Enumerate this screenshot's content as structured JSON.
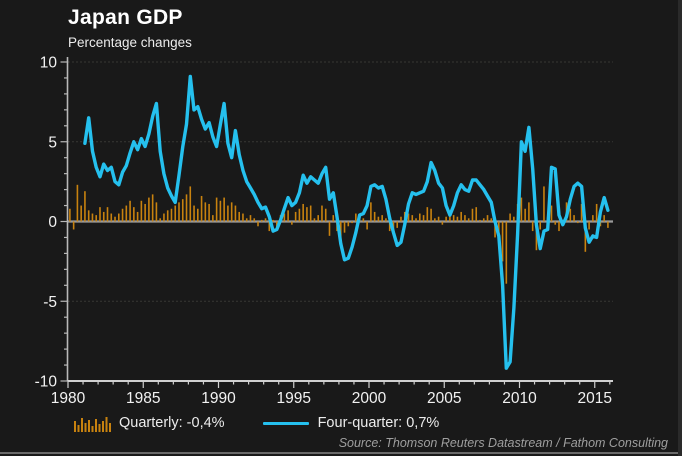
{
  "header": {
    "title": "Japan GDP",
    "subtitle": "Percentage changes"
  },
  "legend": {
    "quarterly_label": "Quarterly: -0,4%",
    "four_quarter_label": "Four-quarter: 0,7%",
    "quarterly_color": "#c8820f",
    "four_quarter_color": "#25c0ee"
  },
  "footer": {
    "source": "Source: Thomson Reuters Datastream / Fathom Consulting"
  },
  "chart_data": {
    "type": "bar",
    "subtype": "bar+line combo, quarterly time series",
    "title": "Japan GDP",
    "subtitle": "Percentage changes",
    "xlabel": "",
    "ylabel": "Percentage changes",
    "ylim": [
      -10,
      10
    ],
    "xlim": [
      1980,
      2016.2
    ],
    "yticks": [
      10,
      5,
      0,
      -5,
      -10
    ],
    "xticks": [
      1980,
      1985,
      1990,
      1995,
      2000,
      2005,
      2010,
      2015
    ],
    "grid": {
      "dotted_at": [
        10,
        5,
        -5
      ],
      "zero_line": true
    },
    "legend_position": "bottom-left",
    "source": "Source: Thomson Reuters Datastream / Fathom Consulting",
    "series": [
      {
        "name": "Quarterly",
        "render": "bar",
        "color": "#c8820f",
        "start_year": 1980,
        "frequency": "quarterly",
        "latest_value_label": "-0,4%",
        "values": [
          0.8,
          -0.5,
          2.3,
          1.0,
          1.9,
          0.7,
          0.5,
          0.4,
          0.9,
          0.6,
          0.9,
          0.5,
          0.3,
          0.5,
          0.8,
          1.0,
          1.3,
          0.9,
          0.6,
          1.3,
          1.1,
          1.5,
          1.7,
          1.2,
          0.2,
          0.5,
          0.7,
          0.8,
          1.0,
          1.2,
          1.4,
          1.7,
          2.2,
          1.0,
          0.8,
          1.6,
          1.2,
          1.1,
          0.4,
          1.5,
          1.3,
          1.5,
          1.0,
          1.2,
          1.0,
          0.6,
          0.5,
          0.2,
          0.4,
          0.2,
          -0.3,
          0.1,
          0.2,
          -0.6,
          0.1,
          -0.4,
          0.4,
          0.5,
          0.7,
          -0.2,
          0.6,
          0.8,
          1.1,
          0.9,
          1.0,
          0.2,
          0.4,
          1.0,
          0.8,
          -0.9,
          0.4,
          -0.6,
          -1.0,
          -0.7,
          -0.3,
          -0.1,
          0.5,
          0.4,
          0.2,
          -0.5,
          1.2,
          0.6,
          0.3,
          0.4,
          0.2,
          -0.6,
          -0.8,
          -0.4,
          0.3,
          0.6,
          0.5,
          0.4,
          0.2,
          0.5,
          0.4,
          0.9,
          0.8,
          0.2,
          0.3,
          -0.2,
          0.3,
          0.6,
          0.4,
          0.3,
          0.6,
          0.4,
          0.2,
          0.8,
          0.9,
          0.1,
          0.2,
          0.4,
          0.2,
          -1.0,
          -1.2,
          -2.5,
          -3.9,
          0.5,
          0.3,
          1.1,
          1.5,
          0.8,
          1.2,
          -0.6,
          -1.8,
          -0.5,
          2.2,
          0.3,
          1.0,
          -0.2,
          -0.6,
          0.1,
          1.2,
          0.8,
          0.4,
          -0.1,
          1.1,
          -1.9,
          -0.5,
          0.4,
          1.1,
          -0.3,
          0.4,
          -0.4
        ]
      },
      {
        "name": "Four-quarter",
        "render": "line",
        "color": "#25c0ee",
        "start_year": 1981,
        "frequency": "quarterly",
        "latest_value_label": "0,7%",
        "values": [
          4.9,
          6.5,
          4.4,
          3.4,
          2.8,
          3.6,
          3.2,
          3.4,
          2.5,
          2.3,
          3.1,
          3.5,
          4.3,
          5.0,
          4.5,
          5.2,
          4.7,
          5.5,
          6.6,
          7.4,
          4.4,
          3.0,
          2.1,
          1.6,
          1.2,
          2.9,
          4.7,
          6.1,
          9.1,
          7.0,
          7.2,
          6.4,
          5.8,
          6.2,
          5.3,
          4.7,
          6.1,
          7.4,
          4.9,
          4.0,
          5.7,
          4.2,
          3.2,
          2.5,
          2.1,
          1.7,
          1.2,
          0.8,
          0.9,
          0.3,
          -0.6,
          -0.5,
          0.1,
          0.8,
          1.5,
          1.0,
          1.2,
          1.8,
          2.9,
          2.4,
          2.8,
          2.6,
          2.4,
          3.0,
          3.4,
          1.4,
          1.8,
          0.3,
          -1.4,
          -2.4,
          -2.3,
          -1.6,
          -0.7,
          0.4,
          0.5,
          1.0,
          2.2,
          2.3,
          2.1,
          2.2,
          1.4,
          0.2,
          -0.7,
          -1.5,
          -1.3,
          -0.2,
          1.1,
          1.8,
          1.7,
          1.8,
          1.9,
          2.5,
          3.7,
          3.2,
          2.4,
          2.1,
          1.0,
          0.4,
          1.0,
          1.8,
          2.3,
          2.0,
          1.9,
          2.6,
          2.6,
          2.3,
          2.0,
          1.6,
          1.2,
          0.0,
          -0.9,
          -4.0,
          -9.2,
          -8.8,
          -5.4,
          -0.8,
          5.0,
          4.4,
          5.9,
          3.3,
          -0.2,
          -1.7,
          -0.6,
          -0.5,
          3.4,
          3.3,
          0.4,
          -0.2,
          0.3,
          1.4,
          2.2,
          2.4,
          2.2,
          -0.4,
          -1.3,
          -0.9,
          -1.0,
          0.6,
          1.5,
          0.7
        ]
      }
    ]
  }
}
